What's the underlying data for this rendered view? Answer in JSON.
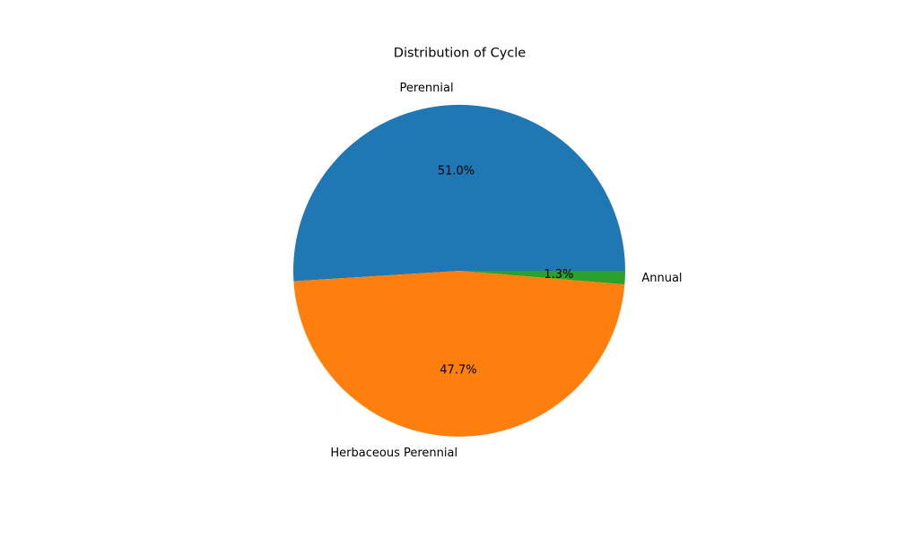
{
  "chart_data": {
    "type": "pie",
    "title": "Distribution of Cycle",
    "start_angle": "0° (3 o'clock), counter-clockwise",
    "slices": [
      {
        "label": "Perennial",
        "value": 51.0,
        "pct_text": "51.0%",
        "color": "#1f77b4"
      },
      {
        "label": "Herbaceous Perennial",
        "value": 47.7,
        "pct_text": "47.7%",
        "color": "#ff7f0e"
      },
      {
        "label": "Annual",
        "value": 1.3,
        "pct_text": "1.3%",
        "color": "#2ca02c"
      }
    ]
  }
}
